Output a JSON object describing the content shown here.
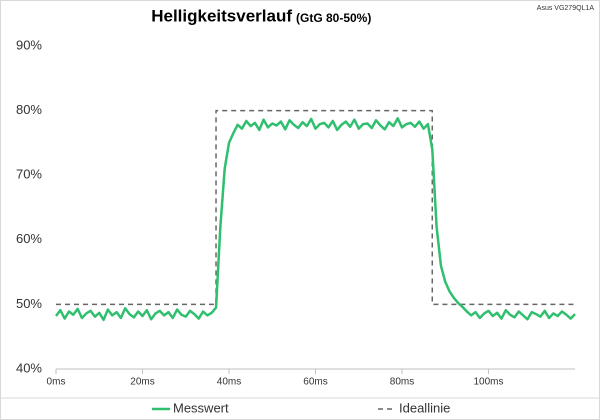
{
  "chart_data": {
    "type": "line",
    "title": "Helligkeitsverlauf",
    "subtitle": "(GtG 80-50%)",
    "note": "Asus VG279QL1A",
    "xlim": [
      0,
      120
    ],
    "ylim": [
      40,
      90
    ],
    "xticks": [
      {
        "value": 0,
        "label": "0ms"
      },
      {
        "value": 20,
        "label": "20ms"
      },
      {
        "value": 40,
        "label": "40ms"
      },
      {
        "value": 60,
        "label": "60ms"
      },
      {
        "value": 80,
        "label": "80ms"
      },
      {
        "value": 100,
        "label": "100ms"
      }
    ],
    "yticks": [
      {
        "value": 40,
        "label": "40%"
      },
      {
        "value": 50,
        "label": "50%"
      },
      {
        "value": 60,
        "label": "60%"
      },
      {
        "value": 70,
        "label": "70%"
      },
      {
        "value": 80,
        "label": "80%"
      },
      {
        "value": 90,
        "label": "90%"
      }
    ],
    "grid": false,
    "series": [
      {
        "name": "Messwert",
        "color": "#2fbf6f",
        "dash": false,
        "x": [
          0,
          1,
          2,
          3,
          4,
          5,
          6,
          7,
          8,
          9,
          10,
          11,
          12,
          13,
          14,
          15,
          16,
          17,
          18,
          19,
          20,
          21,
          22,
          23,
          24,
          25,
          26,
          27,
          28,
          29,
          30,
          31,
          32,
          33,
          34,
          35,
          36,
          37,
          38,
          39,
          40,
          41,
          42,
          43,
          44,
          45,
          46,
          47,
          48,
          49,
          50,
          51,
          52,
          53,
          54,
          55,
          56,
          57,
          58,
          59,
          60,
          61,
          62,
          63,
          64,
          65,
          66,
          67,
          68,
          69,
          70,
          71,
          72,
          73,
          74,
          75,
          76,
          77,
          78,
          79,
          80,
          81,
          82,
          83,
          84,
          85,
          86,
          87,
          88,
          89,
          90,
          91,
          92,
          93,
          94,
          95,
          96,
          97,
          98,
          99,
          100,
          101,
          102,
          103,
          104,
          105,
          106,
          107,
          108,
          109,
          110,
          111,
          112,
          113,
          114,
          115,
          116,
          117,
          118,
          119,
          120
        ],
        "values": [
          48.2,
          49.1,
          47.8,
          48.9,
          48.4,
          49.3,
          47.9,
          48.6,
          49.0,
          48.1,
          48.7,
          47.6,
          49.2,
          48.3,
          48.8,
          47.9,
          49.4,
          48.5,
          48.0,
          48.9,
          48.2,
          49.1,
          47.7,
          48.6,
          49.0,
          48.3,
          48.8,
          47.9,
          49.2,
          48.4,
          48.1,
          49.0,
          48.5,
          47.8,
          48.9,
          48.3,
          48.7,
          49.5,
          62,
          71,
          75,
          76.5,
          77.8,
          77.2,
          78.4,
          77.6,
          78.1,
          77.0,
          78.6,
          77.4,
          78.0,
          77.7,
          78.3,
          77.1,
          78.5,
          77.8,
          77.3,
          78.2,
          77.6,
          78.7,
          77.2,
          77.9,
          78.1,
          77.4,
          78.4,
          77.0,
          77.8,
          78.3,
          77.5,
          78.6,
          77.2,
          77.9,
          78.0,
          77.3,
          78.5,
          77.7,
          77.1,
          78.2,
          77.6,
          78.8,
          77.4,
          77.9,
          78.1,
          77.5,
          78.3,
          77.2,
          77.9,
          74,
          62,
          56,
          53.5,
          52,
          51,
          50.2,
          49.6,
          48.9,
          48.3,
          48.8,
          47.9,
          48.6,
          49.0,
          48.2,
          48.7,
          47.8,
          49.1,
          48.4,
          48.0,
          48.9,
          48.3,
          47.7,
          48.8,
          48.5,
          48.1,
          49.0,
          47.9,
          48.6,
          48.2,
          48.9,
          48.4,
          47.8,
          48.5
        ]
      },
      {
        "name": "Ideallinie",
        "color": "#666666",
        "dash": true,
        "x": [
          0,
          37,
          37,
          87,
          87,
          120
        ],
        "values": [
          50,
          50,
          80,
          80,
          50,
          50
        ]
      }
    ]
  }
}
